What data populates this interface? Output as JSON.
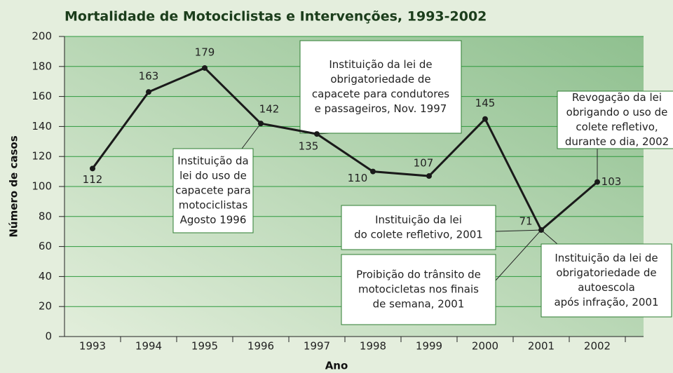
{
  "chart_data": {
    "type": "line",
    "title": "Mortalidade de Motociclistas e Intervenções, 1993-2002",
    "x_label": "Ano",
    "y_label": "Número de casos",
    "categories": [
      "1993",
      "1994",
      "1995",
      "1996",
      "1997",
      "1998",
      "1999",
      "2000",
      "2001",
      "2002"
    ],
    "values": [
      112,
      163,
      179,
      142,
      135,
      110,
      107,
      145,
      71,
      103
    ],
    "color": "#1a1a1a",
    "ylim": [
      0,
      200
    ],
    "yticks": [
      0,
      20,
      40,
      60,
      80,
      100,
      120,
      140,
      160,
      180,
      200
    ],
    "grid": true,
    "annotations": [
      {
        "lines": [
          "Instituição da",
          "lei do uso de",
          "capacete para",
          "motociclistas",
          "Agosto 1996"
        ]
      },
      {
        "lines": [
          "Instituição da lei de",
          "obrigatoriedade de",
          "capacete para condutores",
          "e passageiros, Nov. 1997"
        ]
      },
      {
        "lines": [
          "Revogação da lei",
          "obrigando o uso de",
          "colete refletivo,",
          "durante o dia, 2002"
        ]
      },
      {
        "lines": [
          "Instituição da lei",
          "do colete refletivo, 2001"
        ]
      },
      {
        "lines": [
          "Proibição do trânsito de",
          "motocicletas nos finais",
          "de semana, 2001"
        ]
      },
      {
        "lines": [
          "Instituição da lei de",
          "obrigatoriedade de",
          "autoescola",
          "após infração, 2001"
        ]
      }
    ]
  }
}
